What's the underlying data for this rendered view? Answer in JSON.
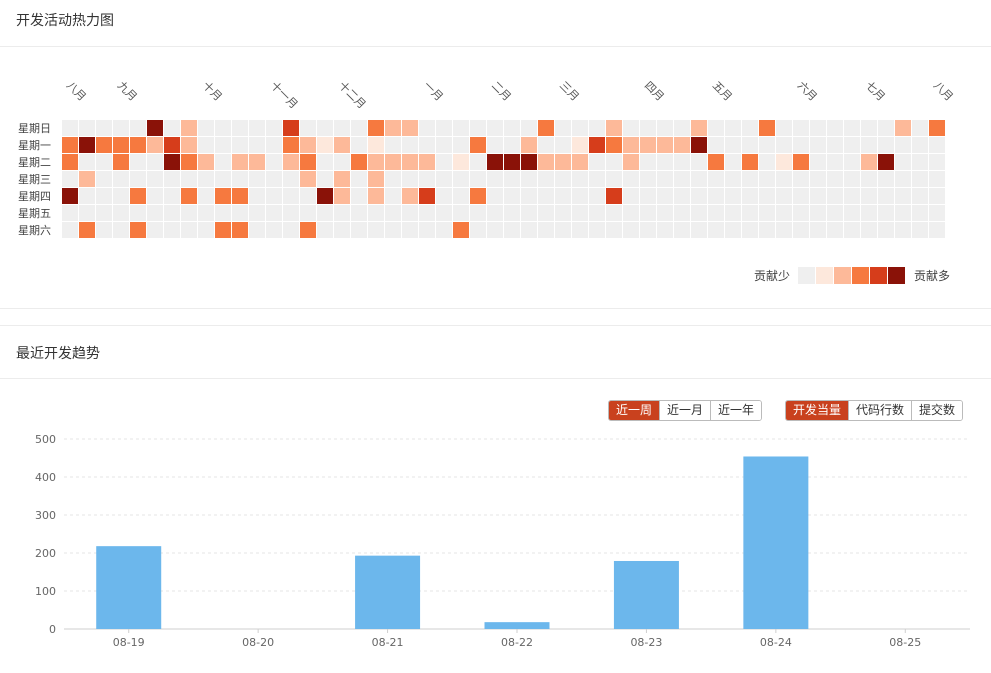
{
  "heatmap": {
    "title": "开发活动热力图",
    "month_labels": [
      {
        "label": "八月",
        "week": 0
      },
      {
        "label": "九月",
        "week": 3
      },
      {
        "label": "十月",
        "week": 8
      },
      {
        "label": "十一月",
        "week": 12
      },
      {
        "label": "十二月",
        "week": 16
      },
      {
        "label": "一月",
        "week": 21
      },
      {
        "label": "二月",
        "week": 25
      },
      {
        "label": "三月",
        "week": 29
      },
      {
        "label": "四月",
        "week": 34
      },
      {
        "label": "五月",
        "week": 38
      },
      {
        "label": "六月",
        "week": 43
      },
      {
        "label": "七月",
        "week": 47
      },
      {
        "label": "八月",
        "week": 51
      }
    ],
    "day_labels": [
      "星期日",
      "星期一",
      "星期二",
      "星期三",
      "星期四",
      "星期五",
      "星期六"
    ],
    "legend": {
      "less": "贡献少",
      "more": "贡献多"
    },
    "colors": [
      "#efefef",
      "#fde8dc",
      "#fdb999",
      "#f6793f",
      "#d63d1b",
      "#8a1208"
    ],
    "levels": [
      "0000050200000400003220000000300020000200030000000203",
      "3533324200000321201000003002001432222500000000000000",
      "3003005320220230032222010555222002000030301300025000",
      "0200000000000020202000000000000000000000000000000000",
      "5000300303300005202024003000000040000000000000000000",
      "0000000000000000000000000000000000000000000000000000",
      "0300300003300030000000030000000000000000000000000000"
    ]
  },
  "trend": {
    "title": "最近开发趋势",
    "range_buttons": [
      {
        "label": "近一周",
        "active": true
      },
      {
        "label": "近一月",
        "active": false
      },
      {
        "label": "近一年",
        "active": false
      }
    ],
    "metric_buttons": [
      {
        "label": "开发当量",
        "active": true
      },
      {
        "label": "代码行数",
        "active": false
      },
      {
        "label": "提交数",
        "active": false
      }
    ]
  },
  "chart_data": {
    "type": "bar",
    "categories": [
      "08-19",
      "08-20",
      "08-21",
      "08-22",
      "08-23",
      "08-24",
      "08-25"
    ],
    "values": [
      218,
      0,
      193,
      18,
      179,
      454,
      0
    ],
    "ylim": [
      0,
      500
    ],
    "yticks": [
      0,
      100,
      200,
      300,
      400,
      500
    ],
    "grid": true,
    "color": "#6cb7ec"
  }
}
